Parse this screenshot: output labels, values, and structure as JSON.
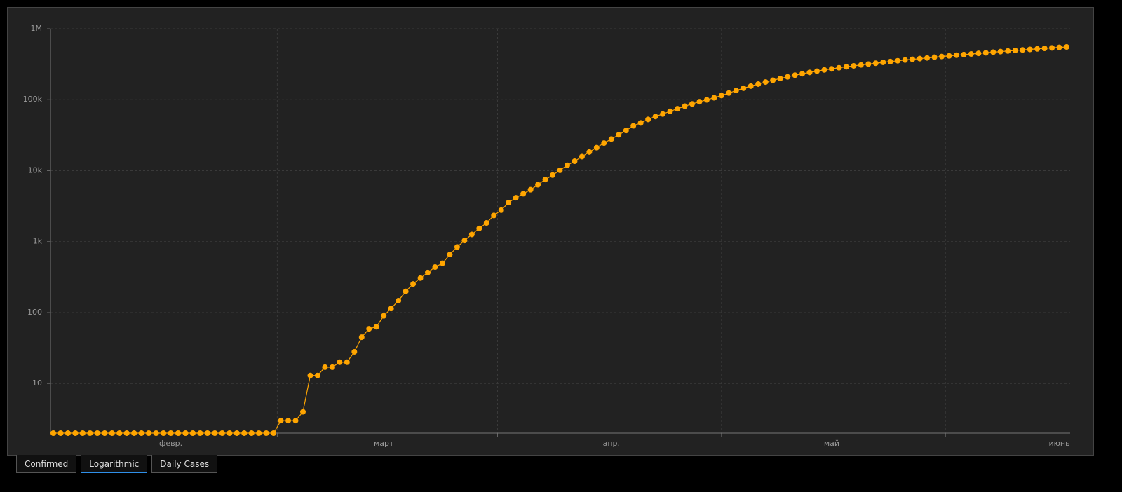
{
  "chart_data": {
    "type": "line",
    "log_y": true,
    "grid": true,
    "color": "#ffa500",
    "categories": [
      null,
      null,
      null,
      null,
      null,
      null,
      null,
      null,
      null,
      null,
      null,
      null,
      null,
      null,
      null,
      null,
      "февр.",
      null,
      null,
      null,
      null,
      null,
      null,
      null,
      null,
      null,
      null,
      null,
      null,
      null,
      null,
      null,
      null,
      null,
      null,
      null,
      null,
      null,
      null,
      null,
      null,
      null,
      null,
      null,
      null,
      "март",
      null,
      null,
      null,
      null,
      null,
      null,
      null,
      null,
      null,
      null,
      null,
      null,
      null,
      null,
      null,
      null,
      null,
      null,
      null,
      null,
      null,
      null,
      null,
      null,
      null,
      null,
      null,
      null,
      null,
      null,
      "апр.",
      null,
      null,
      null,
      null,
      null,
      null,
      null,
      null,
      null,
      null,
      null,
      null,
      null,
      null,
      null,
      null,
      null,
      null,
      null,
      null,
      null,
      null,
      null,
      null,
      null,
      null,
      null,
      null,
      null,
      "май",
      null,
      null,
      null,
      null,
      null,
      null,
      null,
      null,
      null,
      null,
      null,
      null,
      null,
      null,
      null,
      null,
      null,
      null,
      null,
      null,
      null,
      null,
      null,
      null,
      null,
      null,
      null,
      null,
      null,
      null,
      "июнь",
      null
    ],
    "values": [
      2,
      2,
      2,
      2,
      2,
      2,
      2,
      2,
      2,
      2,
      2,
      2,
      2,
      2,
      2,
      2,
      2,
      2,
      2,
      2,
      2,
      2,
      2,
      2,
      2,
      2,
      2,
      2,
      2,
      2,
      2,
      3,
      3,
      3,
      4,
      13,
      13,
      17,
      17,
      20,
      20,
      28,
      45,
      59,
      63,
      90,
      114,
      147,
      199,
      253,
      306,
      367,
      438,
      495,
      658,
      840,
      1036,
      1264,
      1534,
      1836,
      2337,
      2777,
      3548,
      4149,
      4731,
      5389,
      6343,
      7497,
      8672,
      10131,
      11917,
      13584,
      15770,
      18328,
      21102,
      24490,
      27938,
      32008,
      36793,
      42853,
      47121,
      52763,
      57999,
      62773,
      68622,
      74588,
      80949,
      87147,
      93558,
      99399,
      106498,
      114431,
      124054,
      134686,
      145268,
      155370,
      165929,
      177160,
      187859,
      198676,
      209688,
      221344,
      232243,
      242271,
      252245,
      262843,
      272043,
      281752,
      290678,
      299941,
      308705,
      317554,
      326448,
      335882,
      344481,
      353427,
      362342,
      370680,
      379051,
      387623,
      396575,
      405843,
      414328,
      423186,
      431715,
      440538,
      449256,
      458102,
      467073,
      476043,
      485253,
      493657,
      502436,
      511423,
      520129,
      528964,
      537210,
      545458,
      553301
    ],
    "ylim": [
      2,
      1000000
    ],
    "yticks": [
      10,
      100,
      {
        "value": 1000,
        "label": "1k"
      },
      {
        "value": 10000,
        "label": "10k"
      },
      {
        "value": 100000,
        "label": "100k"
      },
      {
        "value": 1000000,
        "label": "1M"
      }
    ]
  },
  "controls": [
    "Confirmed",
    "Logarithmic",
    "Daily Cases"
  ]
}
